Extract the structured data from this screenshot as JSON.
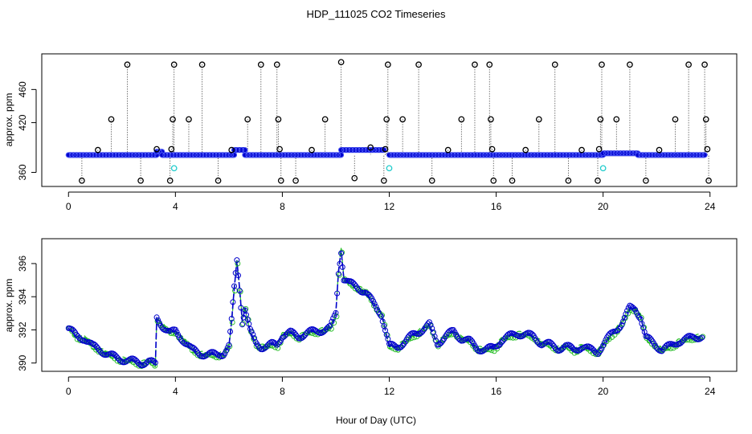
{
  "chart_data": {
    "type": "scatter",
    "title": "HDP_111025  CO2 Timeseries",
    "xlabel": "Hour of Day (UTC)",
    "xlim": [
      -1,
      25
    ],
    "xticks": [
      0,
      4,
      8,
      12,
      16,
      20,
      24
    ],
    "colors": {
      "raw_marker": "#000000",
      "flagged_marker": "#22cccc",
      "series_line": "#0000cc",
      "secondary": "#22bb22"
    },
    "panels": [
      {
        "ylabel": "approx. ppm",
        "ylim": [
          343,
          503
        ],
        "yticks": [
          360,
          420,
          460
        ],
        "baseline_segments": [
          {
            "x": [
              0.0,
              3.3
            ],
            "y": [
              381,
              381
            ]
          },
          {
            "x": [
              3.3,
              3.5
            ],
            "y": [
              385,
              385
            ]
          },
          {
            "x": [
              3.5,
              6.2
            ],
            "y": [
              381,
              381
            ]
          },
          {
            "x": [
              6.2,
              6.6
            ],
            "y": [
              387,
              387
            ]
          },
          {
            "x": [
              6.6,
              10.2
            ],
            "y": [
              381,
              381
            ]
          },
          {
            "x": [
              10.2,
              11.8
            ],
            "y": [
              387,
              387
            ]
          },
          {
            "x": [
              12.0,
              20.0
            ],
            "y": [
              381,
              381
            ]
          },
          {
            "x": [
              20.0,
              21.3
            ],
            "y": [
              383,
              383
            ]
          },
          {
            "x": [
              21.3,
              23.8
            ],
            "y": [
              381,
              381
            ]
          }
        ],
        "spikes": [
          {
            "x": 0.5,
            "y": 350
          },
          {
            "x": 1.1,
            "y": 387
          },
          {
            "x": 1.6,
            "y": 424
          },
          {
            "x": 2.2,
            "y": 490
          },
          {
            "x": 2.7,
            "y": 350
          },
          {
            "x": 3.3,
            "y": 388
          },
          {
            "x": 3.8,
            "y": 350
          },
          {
            "x": 3.85,
            "y": 388
          },
          {
            "x": 3.9,
            "y": 424
          },
          {
            "x": 3.95,
            "y": 490
          },
          {
            "x": 4.5,
            "y": 424
          },
          {
            "x": 5.0,
            "y": 490
          },
          {
            "x": 5.6,
            "y": 350
          },
          {
            "x": 6.1,
            "y": 387
          },
          {
            "x": 6.7,
            "y": 424
          },
          {
            "x": 7.2,
            "y": 490
          },
          {
            "x": 7.8,
            "y": 490
          },
          {
            "x": 7.85,
            "y": 424
          },
          {
            "x": 7.9,
            "y": 388
          },
          {
            "x": 7.95,
            "y": 350
          },
          {
            "x": 8.5,
            "y": 350
          },
          {
            "x": 9.1,
            "y": 387
          },
          {
            "x": 9.6,
            "y": 424
          },
          {
            "x": 10.2,
            "y": 493
          },
          {
            "x": 10.7,
            "y": 353
          },
          {
            "x": 11.3,
            "y": 390
          },
          {
            "x": 11.8,
            "y": 350
          },
          {
            "x": 11.85,
            "y": 388
          },
          {
            "x": 11.9,
            "y": 424
          },
          {
            "x": 11.95,
            "y": 490
          },
          {
            "x": 12.5,
            "y": 424
          },
          {
            "x": 13.1,
            "y": 490
          },
          {
            "x": 13.6,
            "y": 350
          },
          {
            "x": 14.2,
            "y": 387
          },
          {
            "x": 14.7,
            "y": 424
          },
          {
            "x": 15.2,
            "y": 490
          },
          {
            "x": 15.75,
            "y": 490
          },
          {
            "x": 15.8,
            "y": 424
          },
          {
            "x": 15.85,
            "y": 388
          },
          {
            "x": 15.9,
            "y": 350
          },
          {
            "x": 16.6,
            "y": 350
          },
          {
            "x": 17.1,
            "y": 387
          },
          {
            "x": 17.6,
            "y": 424
          },
          {
            "x": 18.2,
            "y": 490
          },
          {
            "x": 18.7,
            "y": 350
          },
          {
            "x": 19.2,
            "y": 387
          },
          {
            "x": 19.8,
            "y": 350
          },
          {
            "x": 19.85,
            "y": 388
          },
          {
            "x": 19.9,
            "y": 424
          },
          {
            "x": 19.95,
            "y": 490
          },
          {
            "x": 20.5,
            "y": 424
          },
          {
            "x": 21.0,
            "y": 490
          },
          {
            "x": 21.6,
            "y": 350
          },
          {
            "x": 22.1,
            "y": 387
          },
          {
            "x": 22.7,
            "y": 424
          },
          {
            "x": 23.2,
            "y": 490
          },
          {
            "x": 23.8,
            "y": 490
          },
          {
            "x": 23.85,
            "y": 424
          },
          {
            "x": 23.9,
            "y": 388
          },
          {
            "x": 23.95,
            "y": 350
          }
        ],
        "flagged_points": [
          {
            "x": 3.95,
            "y": 365
          },
          {
            "x": 12.0,
            "y": 365
          },
          {
            "x": 20.0,
            "y": 365
          }
        ]
      },
      {
        "ylabel": "approx. ppm",
        "ylim": [
          389.5,
          397.5
        ],
        "yticks": [
          390,
          392,
          394,
          396
        ],
        "series": [
          {
            "x": [
              0.0,
              0.3,
              0.6,
              0.9,
              1.2,
              1.5,
              1.8,
              2.1,
              2.4,
              2.7,
              3.0,
              3.25,
              3.3,
              3.5,
              3.8,
              4.0,
              4.3,
              4.6,
              4.9,
              5.2,
              5.5,
              5.8,
              6.0,
              6.1,
              6.2,
              6.3,
              6.4,
              6.5,
              6.6,
              6.8,
              7.0,
              7.2,
              7.4,
              7.6,
              7.8,
              8.0,
              8.3,
              8.6,
              8.9,
              9.2,
              9.5,
              9.8,
              10.0,
              10.1,
              10.2,
              10.3,
              10.5,
              10.8,
              11.1,
              11.4,
              11.7,
              12.0,
              12.3,
              12.6,
              12.9,
              13.2,
              13.5,
              13.8,
              14.1,
              14.4,
              14.7,
              15.0,
              15.3,
              15.6,
              15.9,
              16.2,
              16.5,
              16.8,
              17.1,
              17.4,
              17.7,
              18.0,
              18.3,
              18.6,
              18.9,
              19.2,
              19.5,
              19.8,
              20.1,
              20.4,
              20.7,
              21.0,
              21.2,
              21.4,
              21.6,
              21.9,
              22.2,
              22.5,
              22.8,
              23.1,
              23.4,
              23.7
            ],
            "y": [
              392.1,
              391.6,
              391.5,
              391.0,
              390.8,
              390.5,
              390.3,
              390.2,
              390.1,
              390.0,
              390.1,
              389.9,
              392.7,
              392.3,
              391.8,
              391.9,
              391.4,
              390.8,
              390.6,
              390.5,
              390.5,
              390.6,
              391.0,
              392.5,
              394.5,
              396.2,
              394.5,
              392.5,
              393.3,
              391.9,
              391.2,
              391.0,
              391.0,
              391.1,
              391.1,
              391.7,
              391.8,
              391.6,
              391.8,
              391.9,
              392.0,
              392.1,
              393.0,
              395.5,
              396.8,
              395.1,
              394.8,
              394.6,
              394.3,
              393.6,
              393.0,
              391.0,
              391.0,
              391.3,
              391.7,
              392.0,
              392.3,
              391.2,
              391.6,
              391.9,
              391.5,
              391.3,
              390.9,
              390.8,
              390.9,
              391.4,
              391.6,
              391.8,
              391.7,
              391.6,
              391.2,
              391.1,
              390.9,
              391.0,
              390.8,
              391.0,
              390.8,
              390.7,
              391.3,
              391.9,
              392.4,
              393.3,
              393.3,
              392.8,
              391.5,
              391.2,
              390.8,
              391.0,
              391.3,
              391.4,
              391.6,
              391.6
            ]
          }
        ]
      }
    ]
  }
}
